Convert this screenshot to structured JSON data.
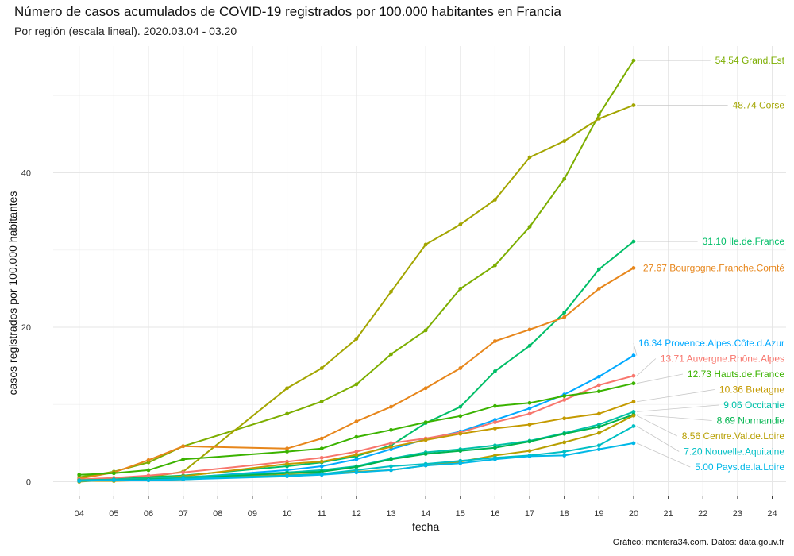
{
  "title": "Número de casos acumulados de COVID-19 registrados por 100.000 habitantes en Francia",
  "subtitle": "Por región (escala lineal). 2020.03.04 - 03.20",
  "caption": "Gráfico: montera34.com. Datos: data.gouv.fr",
  "chart_data": {
    "type": "line",
    "xlabel": "fecha",
    "ylabel": "casos registrados por 100.000 habitantes",
    "x": [
      "04",
      "05",
      "06",
      "07",
      "10",
      "11",
      "12",
      "13",
      "14",
      "15",
      "16",
      "17",
      "18",
      "19",
      "20"
    ],
    "x_ticks": [
      "04",
      "05",
      "06",
      "07",
      "08",
      "09",
      "10",
      "11",
      "12",
      "13",
      "14",
      "15",
      "16",
      "17",
      "18",
      "19",
      "20",
      "21",
      "22",
      "23",
      "24"
    ],
    "xlim": [
      4,
      24
    ],
    "y_ticks": [
      "0",
      "20",
      "40"
    ],
    "ylim": [
      0,
      56
    ],
    "grid": true,
    "legend": "none",
    "series": [
      {
        "name": "Grand.Est",
        "label": "54.54 Grand.Est",
        "color": "#7cae00",
        "values": [
          0.6,
          1.3,
          2.5,
          4.6,
          8.8,
          10.4,
          12.6,
          16.5,
          19.6,
          25.0,
          28.0,
          33.0,
          39.2,
          47.5,
          54.54
        ]
      },
      {
        "name": "Corse",
        "label": "48.74 Corse",
        "color": "#a3a500",
        "values": [
          0.0,
          0.3,
          0.6,
          1.3,
          12.1,
          14.7,
          18.5,
          24.6,
          30.7,
          33.3,
          36.5,
          42.0,
          44.1,
          47.0,
          48.74
        ]
      },
      {
        "name": "Ile.de.France",
        "label": "31.10 Ile.de.France",
        "color": "#00be67",
        "values": [
          0.3,
          0.4,
          0.6,
          0.8,
          2.0,
          2.5,
          3.3,
          4.7,
          7.6,
          9.7,
          14.3,
          17.6,
          21.9,
          27.5,
          31.1
        ]
      },
      {
        "name": "Bourgogne.Franche.Comté",
        "label": "27.67 Bourgogne.Franche.Comté",
        "color": "#e7861b",
        "values": [
          0.4,
          1.2,
          2.8,
          4.6,
          4.3,
          5.6,
          7.8,
          9.7,
          12.1,
          14.7,
          18.2,
          19.7,
          21.3,
          25.0,
          27.67
        ]
      },
      {
        "name": "Provence.Alpes.Côte.d.Azur",
        "label": "16.34 Provence.Alpes.Côte.d.Azur",
        "color": "#00a9ff",
        "values": [
          0.1,
          0.2,
          0.3,
          0.5,
          1.5,
          2.0,
          2.9,
          4.2,
          5.5,
          6.5,
          8.0,
          9.5,
          11.3,
          13.6,
          16.34
        ]
      },
      {
        "name": "Auvergne.Rhône.Alpes",
        "label": "13.71 Auvergne.Rhône.Alpes",
        "color": "#f8766d",
        "values": [
          0.3,
          0.5,
          0.8,
          1.2,
          2.6,
          3.1,
          3.9,
          5.0,
          5.6,
          6.4,
          7.7,
          8.8,
          10.6,
          12.5,
          13.71
        ]
      },
      {
        "name": "Hauts.de.France",
        "label": "12.73 Hauts.de.France",
        "color": "#3bb300",
        "values": [
          0.9,
          1.1,
          1.5,
          2.9,
          3.9,
          4.3,
          5.8,
          6.7,
          7.7,
          8.5,
          9.8,
          10.2,
          11.1,
          11.7,
          12.73
        ]
      },
      {
        "name": "Bretagne",
        "label": "10.36 Bretagne",
        "color": "#c49a00",
        "values": [
          0.2,
          0.3,
          0.4,
          0.7,
          2.3,
          2.6,
          3.5,
          4.5,
          5.4,
          6.2,
          6.9,
          7.4,
          8.2,
          8.8,
          10.36
        ]
      },
      {
        "name": "Occitanie",
        "label": "9.06 Occitanie",
        "color": "#00c1a9",
        "values": [
          0.2,
          0.3,
          0.4,
          0.6,
          1.2,
          1.5,
          2.0,
          3.0,
          3.8,
          4.2,
          4.7,
          5.3,
          6.3,
          7.4,
          9.06
        ]
      },
      {
        "name": "Normandie",
        "label": "8.69 Normandie",
        "color": "#00b44e",
        "values": [
          0.1,
          0.2,
          0.3,
          0.4,
          1.1,
          1.3,
          1.9,
          2.9,
          3.6,
          4.0,
          4.4,
          5.2,
          6.2,
          7.1,
          8.69
        ]
      },
      {
        "name": "Centre.Val.de.Loire",
        "label": "8.56 Centre.Val.de.Loire",
        "color": "#b79f00",
        "values": [
          0.1,
          0.1,
          0.2,
          0.3,
          0.9,
          1.0,
          1.3,
          1.5,
          2.1,
          2.6,
          3.4,
          4.0,
          5.1,
          6.3,
          8.56
        ]
      },
      {
        "name": "Nouvelle.Aquitaine",
        "label": "7.20 Nouvelle.Aquitaine",
        "color": "#00bfc4",
        "values": [
          0.1,
          0.2,
          0.2,
          0.4,
          0.8,
          1.0,
          1.5,
          2.0,
          2.3,
          2.7,
          3.1,
          3.4,
          3.9,
          4.7,
          7.2
        ]
      },
      {
        "name": "Pays.de.la.Loire",
        "label": "5.00 Pays.de.la.Loire",
        "color": "#00b8e7",
        "values": [
          0.1,
          0.2,
          0.2,
          0.3,
          0.7,
          0.9,
          1.2,
          1.5,
          2.1,
          2.4,
          2.9,
          3.3,
          3.4,
          4.2,
          5.0
        ]
      }
    ]
  }
}
